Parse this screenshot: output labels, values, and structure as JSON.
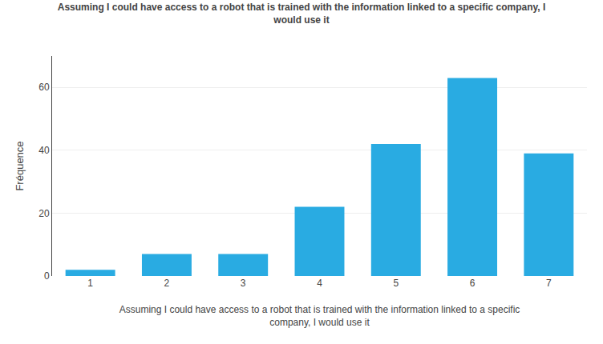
{
  "chart_data": {
    "type": "bar",
    "title": "Assuming I could have access to a robot that is trained with the information linked to a specific company, I\nwould use it",
    "xlabel": "Assuming I could have access to a robot that is trained with the information linked to a specific\ncompany, I would use it",
    "ylabel": "Fréquence",
    "categories": [
      1,
      2,
      3,
      4,
      5,
      6,
      7
    ],
    "values": [
      2,
      7,
      7,
      22,
      42,
      63,
      39
    ],
    "color": "#29abe2",
    "ylim": [
      0,
      70
    ],
    "yticks": [
      0,
      20,
      40,
      60
    ],
    "grid": true
  }
}
